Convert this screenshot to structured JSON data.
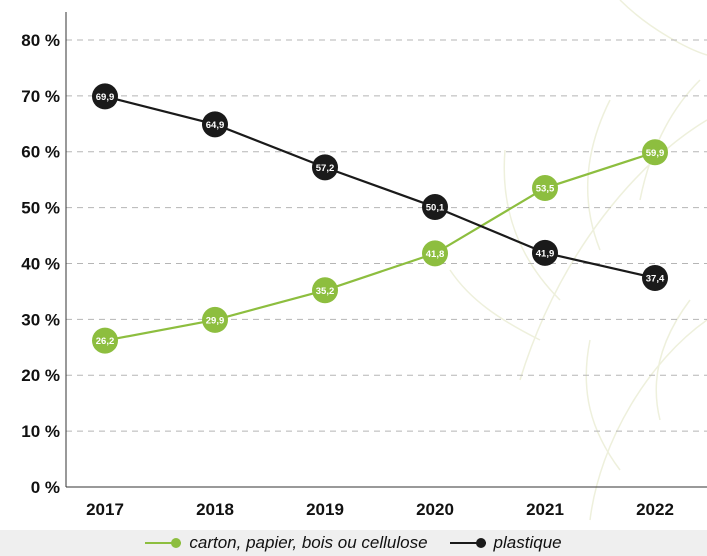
{
  "chart_data": {
    "type": "line",
    "title": "",
    "xlabel": "",
    "ylabel": "",
    "categories": [
      "2017",
      "2018",
      "2019",
      "2020",
      "2021",
      "2022"
    ],
    "ylim": [
      0,
      85
    ],
    "yticks": [
      "0 %",
      "10 %",
      "20 %",
      "30 %",
      "40 %",
      "50 %",
      "60 %",
      "70 %",
      "80 %"
    ],
    "grid": "horizontal-dashed",
    "legend": "bottom",
    "series": [
      {
        "name": "carton, papier, bois ou cellulose",
        "color": "#8dbe3f",
        "values": [
          26.2,
          29.9,
          35.2,
          41.8,
          53.5,
          59.9
        ],
        "labels": [
          "26,2",
          "29,9",
          "35,2",
          "41,8",
          "53,5",
          "59,9"
        ]
      },
      {
        "name": "plastique",
        "color": "#1a1a1a",
        "values": [
          69.9,
          64.9,
          57.2,
          50.1,
          41.9,
          37.4
        ],
        "labels": [
          "69,9",
          "64,9",
          "57,2",
          "50,1",
          "41,9",
          "37,4"
        ]
      }
    ]
  }
}
